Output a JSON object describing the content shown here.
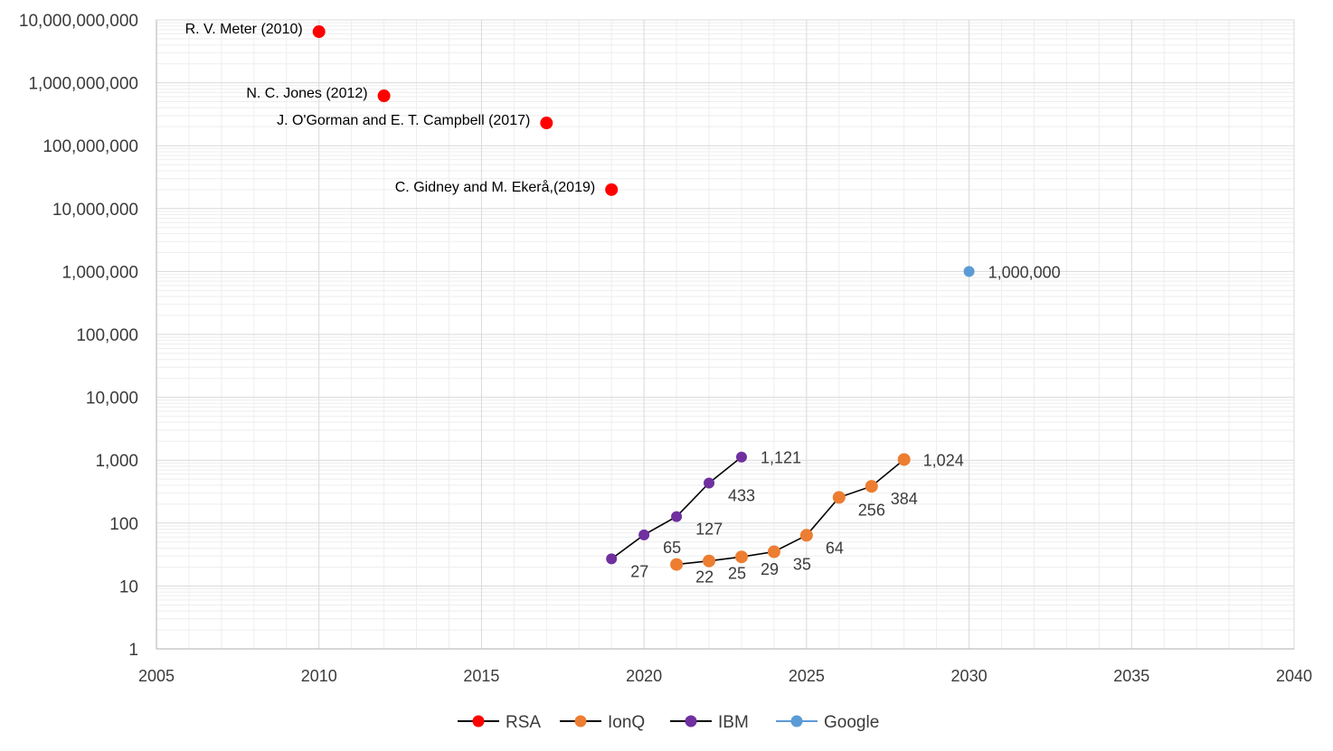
{
  "chart_data": {
    "type": "scatter",
    "title": "",
    "xlabel": "",
    "ylabel": "",
    "xlim": [
      2005,
      2040
    ],
    "ylim": [
      1,
      10000000000
    ],
    "yscale": "log",
    "grid": true,
    "legend_position": "bottom",
    "x_ticks": [
      {
        "value": 2005,
        "label": "2005"
      },
      {
        "value": 2010,
        "label": "2010"
      },
      {
        "value": 2015,
        "label": "2015"
      },
      {
        "value": 2020,
        "label": "2020"
      },
      {
        "value": 2025,
        "label": "2025"
      },
      {
        "value": 2030,
        "label": "2030"
      },
      {
        "value": 2035,
        "label": "2035"
      },
      {
        "value": 2040,
        "label": "2040"
      }
    ],
    "y_ticks": [
      {
        "value": 1,
        "label": "1"
      },
      {
        "value": 10,
        "label": "10"
      },
      {
        "value": 100,
        "label": "100"
      },
      {
        "value": 1000,
        "label": "1,000"
      },
      {
        "value": 10000,
        "label": "10,000"
      },
      {
        "value": 100000,
        "label": "100,000"
      },
      {
        "value": 1000000,
        "label": "1,000,000"
      },
      {
        "value": 10000000,
        "label": "10,000,000"
      },
      {
        "value": 100000000,
        "label": "100,000,000"
      },
      {
        "value": 1000000000,
        "label": "1,000,000,000"
      },
      {
        "value": 10000000000,
        "label": "10,000,000,000"
      }
    ],
    "series": [
      {
        "name": "RSA",
        "color": "#ff0000",
        "line": false,
        "points": [
          {
            "x": 2010,
            "y": 6500000000,
            "label": "R. V. Meter (2010)"
          },
          {
            "x": 2012,
            "y": 620000000,
            "label": "N. C. Jones (2012)"
          },
          {
            "x": 2017,
            "y": 230000000,
            "label": "J. O'Gorman and E. T. Campbell (2017)"
          },
          {
            "x": 2019,
            "y": 20000000,
            "label": "C. Gidney and M. Ekerå,(2019)"
          }
        ]
      },
      {
        "name": "IonQ",
        "color": "#ed7d31",
        "line": true,
        "points": [
          {
            "x": 2021,
            "y": 22,
            "label": "22"
          },
          {
            "x": 2022,
            "y": 25,
            "label": "25"
          },
          {
            "x": 2023,
            "y": 29,
            "label": "29"
          },
          {
            "x": 2024,
            "y": 35,
            "label": "35"
          },
          {
            "x": 2025,
            "y": 64,
            "label": "64"
          },
          {
            "x": 2026,
            "y": 256,
            "label": "256"
          },
          {
            "x": 2027,
            "y": 384,
            "label": "384"
          },
          {
            "x": 2028,
            "y": 1024,
            "label": "1,024"
          }
        ]
      },
      {
        "name": "IBM",
        "color": "#7030a0",
        "line": true,
        "points": [
          {
            "x": 2019,
            "y": 27,
            "label": "27"
          },
          {
            "x": 2020,
            "y": 65,
            "label": "65"
          },
          {
            "x": 2021,
            "y": 127,
            "label": "127"
          },
          {
            "x": 2022,
            "y": 433,
            "label": "433"
          },
          {
            "x": 2023,
            "y": 1121,
            "label": "1,121"
          }
        ]
      },
      {
        "name": "Google",
        "color": "#5b9bd5",
        "line": false,
        "points": [
          {
            "x": 2030,
            "y": 1000000,
            "label": "1,000,000"
          }
        ]
      }
    ]
  }
}
